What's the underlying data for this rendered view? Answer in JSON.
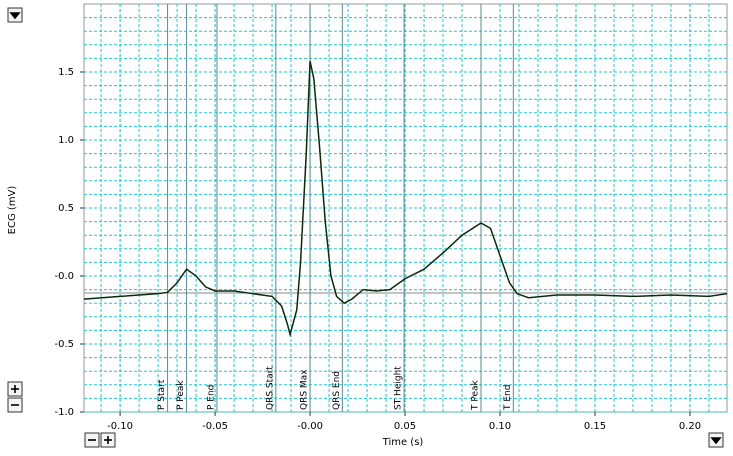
{
  "chart_data": {
    "type": "line",
    "x_label": "Time (s)",
    "y_label": "ECG (mV)",
    "xlim": [
      -0.119,
      0.2195
    ],
    "ylim": [
      -1.0,
      2.0
    ],
    "xticks": [
      {
        "value": -0.1,
        "label": "-0.10"
      },
      {
        "value": -0.05,
        "label": "-0.05"
      },
      {
        "value": 0,
        "label": "-0.00"
      },
      {
        "value": 0.05,
        "label": "0.05"
      },
      {
        "value": 0.1,
        "label": "0.10"
      },
      {
        "value": 0.15,
        "label": "0.15"
      },
      {
        "value": 0.2,
        "label": "0.20"
      }
    ],
    "yticks": [
      {
        "value": -1.0,
        "label": "-1.0"
      },
      {
        "value": -0.5,
        "label": "-0.5"
      },
      {
        "value": 0,
        "label": "-0.0"
      },
      {
        "value": 0.5,
        "label": "0.5"
      },
      {
        "value": 1.0,
        "label": "1.0"
      },
      {
        "value": 1.5,
        "label": "1.5"
      }
    ],
    "grid": true,
    "baseline": -0.125,
    "markers": [
      {
        "label": "P Start",
        "x": -0.075
      },
      {
        "label": "P Peak",
        "x": -0.065
      },
      {
        "label": "P End",
        "x": -0.049
      },
      {
        "label": "QRS Start",
        "x": -0.018
      },
      {
        "label": "QRS Max",
        "x": 0.0
      },
      {
        "label": "QRS End",
        "x": 0.017
      },
      {
        "label": "ST Height",
        "x": 0.0495
      },
      {
        "label": "T Peak",
        "x": 0.09
      },
      {
        "label": "T End",
        "x": 0.107
      }
    ],
    "series": [
      {
        "color": "#0b2a0b",
        "x": [
          -0.119,
          -0.1,
          -0.09,
          -0.08,
          -0.075,
          -0.07,
          -0.065,
          -0.06,
          -0.055,
          -0.05,
          -0.04,
          -0.03,
          -0.02,
          -0.015,
          -0.012,
          -0.0105,
          -0.007,
          -0.005,
          -0.002,
          0.0,
          0.002,
          0.005,
          0.008,
          0.011,
          0.014,
          0.018,
          0.022,
          0.028,
          0.035,
          0.042,
          0.05,
          0.06,
          0.07,
          0.08,
          0.09,
          0.095,
          0.1,
          0.105,
          0.109,
          0.115,
          0.13,
          0.15,
          0.17,
          0.19,
          0.21,
          0.2195
        ],
        "values": [
          -0.17,
          -0.15,
          -0.14,
          -0.13,
          -0.12,
          -0.05,
          0.05,
          0.0,
          -0.08,
          -0.11,
          -0.11,
          -0.13,
          -0.15,
          -0.22,
          -0.35,
          -0.43,
          -0.25,
          0.1,
          0.9,
          1.58,
          1.45,
          0.95,
          0.4,
          0.0,
          -0.15,
          -0.2,
          -0.17,
          -0.1,
          -0.11,
          -0.1,
          -0.02,
          0.05,
          0.17,
          0.3,
          0.39,
          0.35,
          0.15,
          -0.05,
          -0.13,
          -0.16,
          -0.14,
          -0.14,
          -0.15,
          -0.14,
          -0.15,
          -0.13
        ]
      }
    ]
  }
}
